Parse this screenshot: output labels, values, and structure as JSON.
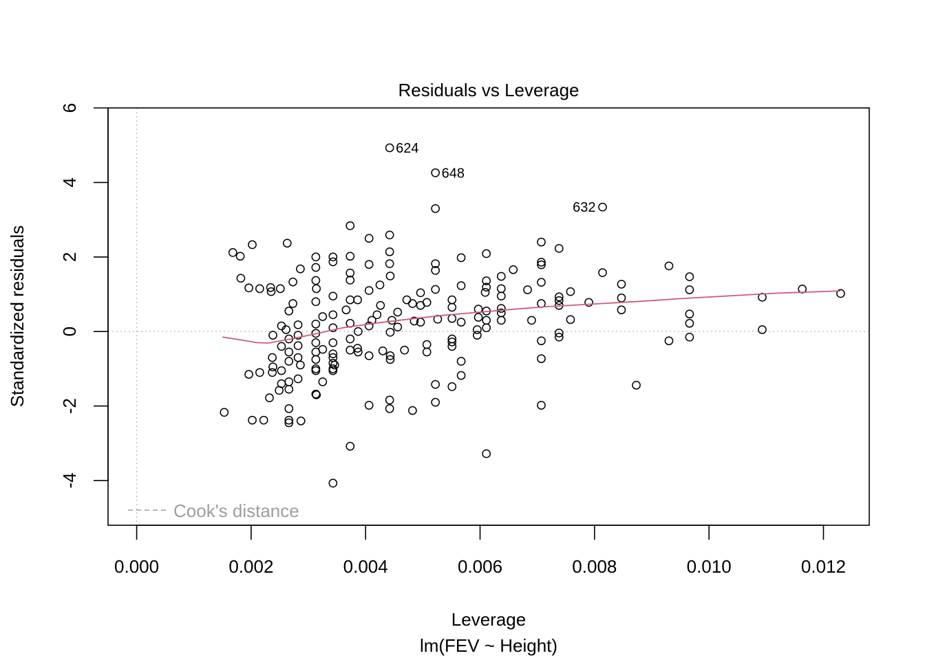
{
  "chart_data": {
    "type": "scatter",
    "title": "Residuals vs Leverage",
    "xlabel": "Leverage",
    "xlabel2": "lm(FEV ~ Height)",
    "ylabel": "Standardized residuals",
    "xlim": [
      -0.0005,
      0.0128
    ],
    "ylim": [
      -5.2,
      6.0
    ],
    "xticks": [
      0.0,
      0.002,
      0.004,
      0.006,
      0.008,
      0.01,
      0.012
    ],
    "xtick_labels": [
      "0.000",
      "0.002",
      "0.004",
      "0.006",
      "0.008",
      "0.010",
      "0.012"
    ],
    "yticks": [
      -4,
      -2,
      0,
      2,
      4,
      6
    ],
    "ytick_labels": [
      "-4",
      "-2",
      "0",
      "2",
      "4",
      "6"
    ],
    "grid": false,
    "reference_lines": {
      "x": 0,
      "y": 0,
      "style": "dotted",
      "color": "#bebebe"
    },
    "legend": {
      "label": "Cook's distance",
      "placement": "bottom-left",
      "line_style": "dashed",
      "color": "#9e9e9e"
    },
    "colors": {
      "points": "#000000",
      "smooth": "#d05a74",
      "reference": "#bebebe",
      "legend": "#9e9e9e"
    },
    "labeled_points": [
      {
        "label": "624",
        "x": 0.00442,
        "y": 4.93,
        "side": "right"
      },
      {
        "label": "648",
        "x": 0.00522,
        "y": 4.26,
        "side": "right"
      },
      {
        "label": "632",
        "x": 0.00814,
        "y": 3.34,
        "side": "left"
      }
    ],
    "smooth_line": {
      "name": "",
      "x": [
        0.0015,
        0.0018,
        0.0021,
        0.0023,
        0.0027,
        0.0031,
        0.0036,
        0.0042,
        0.0048,
        0.0054,
        0.006,
        0.0066,
        0.0072,
        0.008,
        0.0088,
        0.0096,
        0.0104,
        0.0112,
        0.0123
      ],
      "y": [
        -0.15,
        -0.22,
        -0.3,
        -0.31,
        -0.2,
        -0.07,
        0.1,
        0.23,
        0.34,
        0.44,
        0.52,
        0.6,
        0.67,
        0.74,
        0.81,
        0.89,
        0.96,
        1.03,
        1.09
      ]
    },
    "series": [
      {
        "name": "",
        "points": [
          [
            0.00442,
            4.93
          ],
          [
            0.00522,
            4.26
          ],
          [
            0.00814,
            3.34
          ],
          [
            0.00522,
            3.3
          ],
          [
            0.00373,
            2.84
          ],
          [
            0.00442,
            2.59
          ],
          [
            0.00406,
            2.5
          ],
          [
            0.00707,
            2.4
          ],
          [
            0.00263,
            2.37
          ],
          [
            0.00202,
            2.33
          ],
          [
            0.00738,
            2.23
          ],
          [
            0.00442,
            2.14
          ],
          [
            0.00168,
            2.12
          ],
          [
            0.00611,
            2.09
          ],
          [
            0.00181,
            2.02
          ],
          [
            0.00373,
            2.02
          ],
          [
            0.00313,
            2.0
          ],
          [
            0.00343,
            2.0
          ],
          [
            0.00567,
            1.98
          ],
          [
            0.00343,
            1.87
          ],
          [
            0.00707,
            1.86
          ],
          [
            0.00442,
            1.82
          ],
          [
            0.00522,
            1.82
          ],
          [
            0.00406,
            1.8
          ],
          [
            0.00707,
            1.79
          ],
          [
            0.0093,
            1.76
          ],
          [
            0.00313,
            1.72
          ],
          [
            0.00286,
            1.68
          ],
          [
            0.00658,
            1.66
          ],
          [
            0.00522,
            1.64
          ],
          [
            0.00814,
            1.58
          ],
          [
            0.00373,
            1.57
          ],
          [
            0.00443,
            1.49
          ],
          [
            0.00637,
            1.48
          ],
          [
            0.00966,
            1.47
          ],
          [
            0.00182,
            1.43
          ],
          [
            0.00373,
            1.38
          ],
          [
            0.00313,
            1.37
          ],
          [
            0.00611,
            1.36
          ],
          [
            0.00273,
            1.33
          ],
          [
            0.00707,
            1.32
          ],
          [
            0.00847,
            1.27
          ],
          [
            0.00425,
            1.25
          ],
          [
            0.00567,
            1.23
          ],
          [
            0.00611,
            1.19
          ],
          [
            0.00234,
            1.18
          ],
          [
            0.00196,
            1.17
          ],
          [
            0.00215,
            1.15
          ],
          [
            0.00251,
            1.15
          ],
          [
            0.00314,
            1.15
          ],
          [
            0.00637,
            1.15
          ],
          [
            0.01163,
            1.14
          ],
          [
            0.00522,
            1.13
          ],
          [
            0.00966,
            1.12
          ],
          [
            0.00683,
            1.12
          ],
          [
            0.00406,
            1.1
          ],
          [
            0.00235,
            1.07
          ],
          [
            0.00758,
            1.07
          ],
          [
            0.00609,
            1.05
          ],
          [
            0.00496,
            1.04
          ],
          [
            0.00738,
            0.93
          ],
          [
            0.01093,
            0.92
          ],
          [
            0.00847,
            0.9
          ],
          [
            0.00343,
            0.95
          ],
          [
            0.00637,
            0.95
          ],
          [
            0.00472,
            0.85
          ],
          [
            0.00386,
            0.85
          ],
          [
            0.00551,
            0.85
          ],
          [
            0.00373,
            0.85
          ],
          [
            0.00313,
            0.8
          ],
          [
            0.00738,
            0.83
          ],
          [
            0.0079,
            0.78
          ],
          [
            0.00507,
            0.78
          ],
          [
            0.00273,
            0.75
          ],
          [
            0.00482,
            0.75
          ],
          [
            0.00707,
            0.75
          ],
          [
            0.00426,
            0.7
          ],
          [
            0.00496,
            0.7
          ],
          [
            0.00738,
            0.7
          ],
          [
            0.00551,
            0.65
          ],
          [
            0.00637,
            0.62
          ],
          [
            0.00597,
            0.6
          ],
          [
            0.00847,
            0.58
          ],
          [
            0.00366,
            0.58
          ],
          [
            0.00266,
            0.55
          ],
          [
            0.00611,
            0.55
          ],
          [
            0.00456,
            0.52
          ],
          [
            0.00637,
            0.5
          ],
          [
            0.00966,
            0.47
          ],
          [
            0.0042,
            0.45
          ],
          [
            0.00343,
            0.45
          ],
          [
            0.00325,
            0.4
          ],
          [
            0.00597,
            0.38
          ],
          [
            0.00551,
            0.35
          ],
          [
            0.00526,
            0.33
          ],
          [
            0.00611,
            0.3
          ],
          [
            0.00637,
            0.3
          ],
          [
            0.0069,
            0.3
          ],
          [
            0.00758,
            0.32
          ],
          [
            0.00411,
            0.3
          ],
          [
            0.00446,
            0.3
          ],
          [
            0.00485,
            0.28
          ],
          [
            0.00496,
            0.25
          ],
          [
            0.00567,
            0.25
          ],
          [
            0.00966,
            0.22
          ],
          [
            0.00373,
            0.22
          ],
          [
            0.00313,
            0.2
          ],
          [
            0.00282,
            0.18
          ],
          [
            0.00253,
            0.15
          ],
          [
            0.00406,
            0.15
          ],
          [
            0.00456,
            0.12
          ],
          [
            0.00611,
            0.1
          ],
          [
            0.00343,
            0.1
          ],
          [
            0.00595,
            0.05
          ],
          [
            0.01093,
            0.05
          ],
          [
            0.00261,
            0.05
          ],
          [
            0.00387,
            0.0
          ],
          [
            0.00443,
            -0.02
          ],
          [
            0.00738,
            -0.04
          ],
          [
            0.00313,
            -0.05
          ],
          [
            0.00595,
            -0.1
          ],
          [
            0.00282,
            -0.1
          ],
          [
            0.00238,
            -0.1
          ],
          [
            0.00966,
            -0.15
          ],
          [
            0.00551,
            -0.2
          ],
          [
            0.00266,
            -0.2
          ],
          [
            0.00373,
            -0.2
          ],
          [
            0.00707,
            -0.25
          ],
          [
            0.0093,
            -0.25
          ],
          [
            0.00551,
            -0.28
          ],
          [
            0.00313,
            -0.3
          ],
          [
            0.00343,
            -0.3
          ],
          [
            0.00738,
            -0.15
          ],
          [
            0.00507,
            -0.35
          ],
          [
            0.00282,
            -0.38
          ],
          [
            0.00551,
            -0.4
          ],
          [
            0.00253,
            -0.4
          ],
          [
            0.00386,
            -0.45
          ],
          [
            0.00325,
            -0.48
          ],
          [
            0.00468,
            -0.5
          ],
          [
            0.00373,
            -0.5
          ],
          [
            0.0043,
            -0.52
          ],
          [
            0.00507,
            -0.55
          ],
          [
            0.00266,
            -0.55
          ],
          [
            0.00387,
            -0.55
          ],
          [
            0.00313,
            -0.55
          ],
          [
            0.00343,
            -0.6
          ],
          [
            0.00406,
            -0.65
          ],
          [
            0.00443,
            -0.65
          ],
          [
            0.00282,
            -0.7
          ],
          [
            0.00237,
            -0.7
          ],
          [
            0.00343,
            -0.7
          ],
          [
            0.00707,
            -0.73
          ],
          [
            0.00313,
            -0.75
          ],
          [
            0.00443,
            -0.75
          ],
          [
            0.00567,
            -0.8
          ],
          [
            0.00266,
            -0.8
          ],
          [
            0.00343,
            -0.85
          ],
          [
            0.00346,
            -0.9
          ],
          [
            0.00286,
            -0.9
          ],
          [
            0.00238,
            -0.95
          ],
          [
            0.00313,
            -1.0
          ],
          [
            0.00343,
            -1.0
          ],
          [
            0.00253,
            -1.05
          ],
          [
            0.00313,
            -1.05
          ],
          [
            0.00343,
            -1.05
          ],
          [
            0.00237,
            -1.1
          ],
          [
            0.00215,
            -1.1
          ],
          [
            0.00196,
            -1.15
          ],
          [
            0.00567,
            -1.18
          ],
          [
            0.00282,
            -1.27
          ],
          [
            0.00325,
            -1.35
          ],
          [
            0.00266,
            -1.35
          ],
          [
            0.00253,
            -1.4
          ],
          [
            0.00522,
            -1.42
          ],
          [
            0.00873,
            -1.44
          ],
          [
            0.00551,
            -1.48
          ],
          [
            0.00266,
            -1.55
          ],
          [
            0.00249,
            -1.58
          ],
          [
            0.00313,
            -1.68
          ],
          [
            0.00314,
            -1.7
          ],
          [
            0.00232,
            -1.78
          ],
          [
            0.00442,
            -1.84
          ],
          [
            0.00522,
            -1.9
          ],
          [
            0.00406,
            -1.98
          ],
          [
            0.00707,
            -1.98
          ],
          [
            0.00442,
            -2.07
          ],
          [
            0.00266,
            -2.07
          ],
          [
            0.00482,
            -2.12
          ],
          [
            0.00153,
            -2.17
          ],
          [
            0.00202,
            -2.38
          ],
          [
            0.00222,
            -2.38
          ],
          [
            0.00266,
            -2.38
          ],
          [
            0.00287,
            -2.4
          ],
          [
            0.00266,
            -2.45
          ],
          [
            0.00373,
            -3.08
          ],
          [
            0.00611,
            -3.28
          ],
          [
            0.00343,
            -4.07
          ],
          [
            0.0123,
            1.02
          ]
        ]
      }
    ]
  }
}
